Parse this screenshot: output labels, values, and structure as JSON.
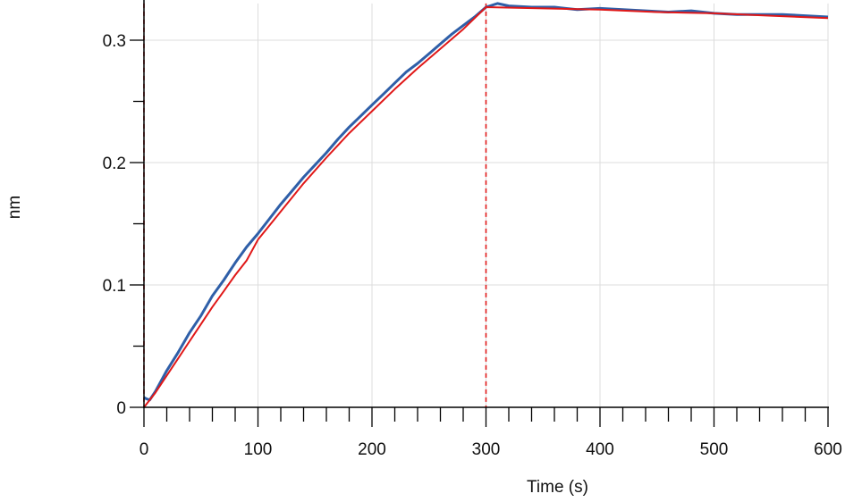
{
  "chart_data": {
    "type": "line",
    "title": "",
    "xlabel": "Time (s)",
    "ylabel": "nm",
    "xlim": [
      0,
      600
    ],
    "ylim": [
      0,
      0.33
    ],
    "grid": true,
    "x_ticks": [
      0,
      100,
      200,
      300,
      400,
      500,
      600
    ],
    "x_tick_labels": [
      "0",
      "100",
      "200",
      "300",
      "400",
      "500",
      "600"
    ],
    "y_ticks": [
      0,
      0.1,
      0.2,
      0.3
    ],
    "y_tick_labels": [
      "0",
      "0.1",
      "0.2",
      "0.3"
    ],
    "vertical_markers": [
      0,
      300
    ],
    "series": [
      {
        "role": "measured",
        "color": "#2f5fa8",
        "x": [
          0,
          2,
          5,
          10,
          20,
          30,
          40,
          50,
          60,
          70,
          80,
          90,
          100,
          110,
          120,
          130,
          140,
          150,
          160,
          170,
          180,
          190,
          200,
          210,
          220,
          230,
          240,
          250,
          260,
          270,
          280,
          290,
          300,
          310,
          320,
          340,
          360,
          380,
          400,
          420,
          440,
          460,
          480,
          500,
          520,
          540,
          560,
          580,
          600
        ],
        "y": [
          0.008,
          0.007,
          0.006,
          0.013,
          0.03,
          0.045,
          0.061,
          0.075,
          0.091,
          0.104,
          0.118,
          0.131,
          0.142,
          0.154,
          0.166,
          0.177,
          0.188,
          0.198,
          0.208,
          0.219,
          0.229,
          0.238,
          0.247,
          0.256,
          0.265,
          0.274,
          0.281,
          0.289,
          0.297,
          0.305,
          0.312,
          0.319,
          0.327,
          0.33,
          0.328,
          0.327,
          0.327,
          0.325,
          0.326,
          0.325,
          0.324,
          0.323,
          0.324,
          0.322,
          0.321,
          0.321,
          0.321,
          0.32,
          0.319
        ]
      },
      {
        "role": "fit",
        "color": "#e01818",
        "x": [
          0,
          10,
          20,
          30,
          40,
          50,
          60,
          70,
          80,
          90,
          100,
          120,
          140,
          160,
          180,
          200,
          220,
          240,
          260,
          280,
          300,
          350,
          400,
          450,
          500,
          550,
          600
        ],
        "y": [
          0.0,
          0.012,
          0.026,
          0.04,
          0.054,
          0.068,
          0.082,
          0.095,
          0.108,
          0.12,
          0.137,
          0.16,
          0.183,
          0.204,
          0.224,
          0.242,
          0.26,
          0.277,
          0.293,
          0.309,
          0.327,
          0.326,
          0.325,
          0.323,
          0.322,
          0.32,
          0.318
        ]
      }
    ]
  }
}
